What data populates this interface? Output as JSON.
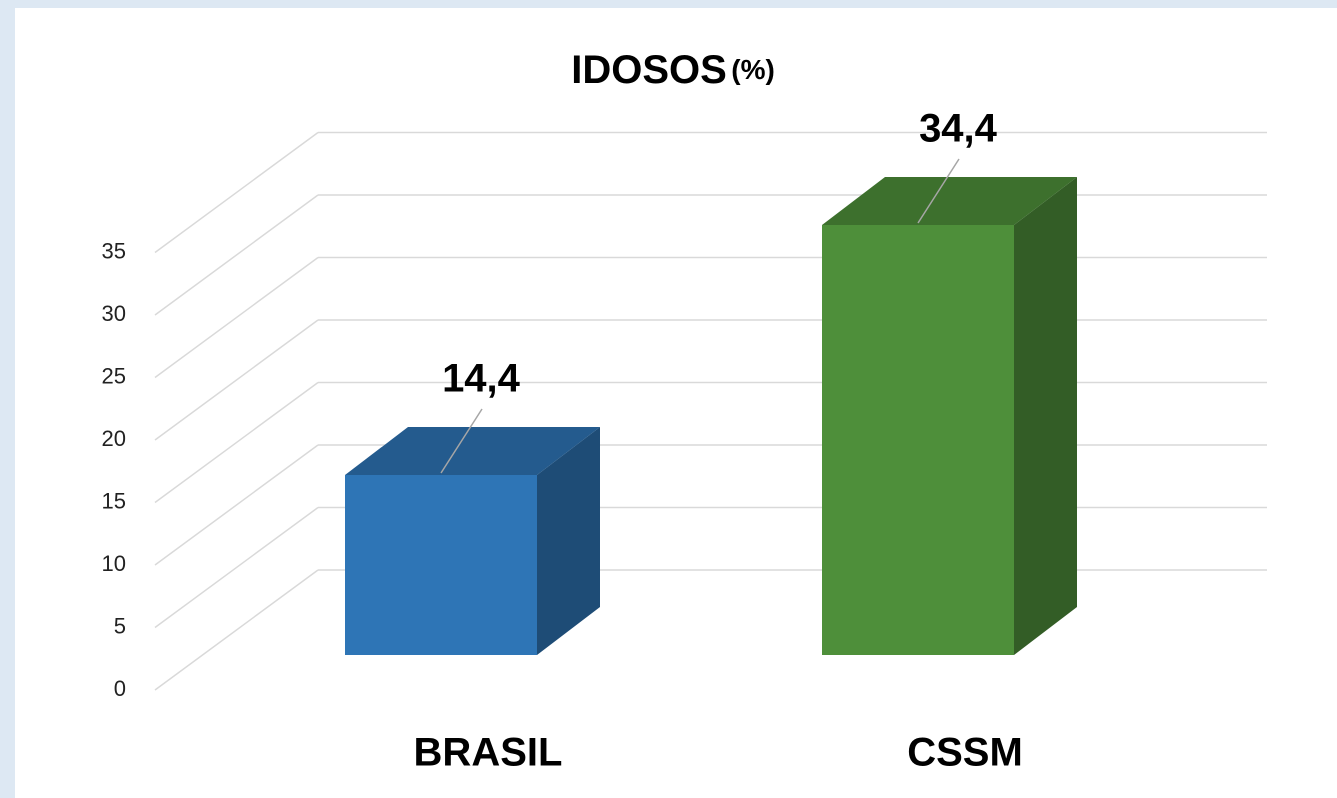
{
  "chart_data": {
    "type": "bar3d",
    "title": "IDOSOS",
    "title_suffix": "(%)",
    "categories": [
      "BRASIL",
      "CSSM"
    ],
    "values": [
      14.4,
      34.4
    ],
    "value_labels": [
      "14,4",
      "34,4"
    ],
    "colors": [
      "#2e75b6",
      "#4e8f3a"
    ],
    "ylim": [
      0,
      35
    ],
    "yticks": [
      0,
      5,
      10,
      15,
      20,
      25,
      30,
      35
    ],
    "grid": true
  }
}
